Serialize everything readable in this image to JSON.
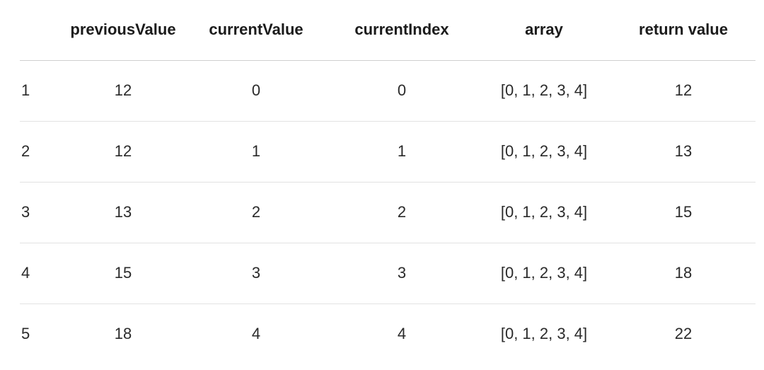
{
  "table": {
    "headers": [
      "",
      "previousValue",
      "currentValue",
      "currentIndex",
      "array",
      "return value"
    ],
    "rows": [
      [
        "1",
        "12",
        "0",
        "0",
        "[0, 1, 2, 3, 4]",
        "12"
      ],
      [
        "2",
        "12",
        "1",
        "1",
        "[0, 1, 2, 3, 4]",
        "13"
      ],
      [
        "3",
        "13",
        "2",
        "2",
        "[0, 1, 2, 3, 4]",
        "15"
      ],
      [
        "4",
        "15",
        "3",
        "3",
        "[0, 1, 2, 3, 4]",
        "18"
      ],
      [
        "5",
        "18",
        "4",
        "4",
        "[0, 1, 2, 3, 4]",
        "22"
      ]
    ]
  }
}
